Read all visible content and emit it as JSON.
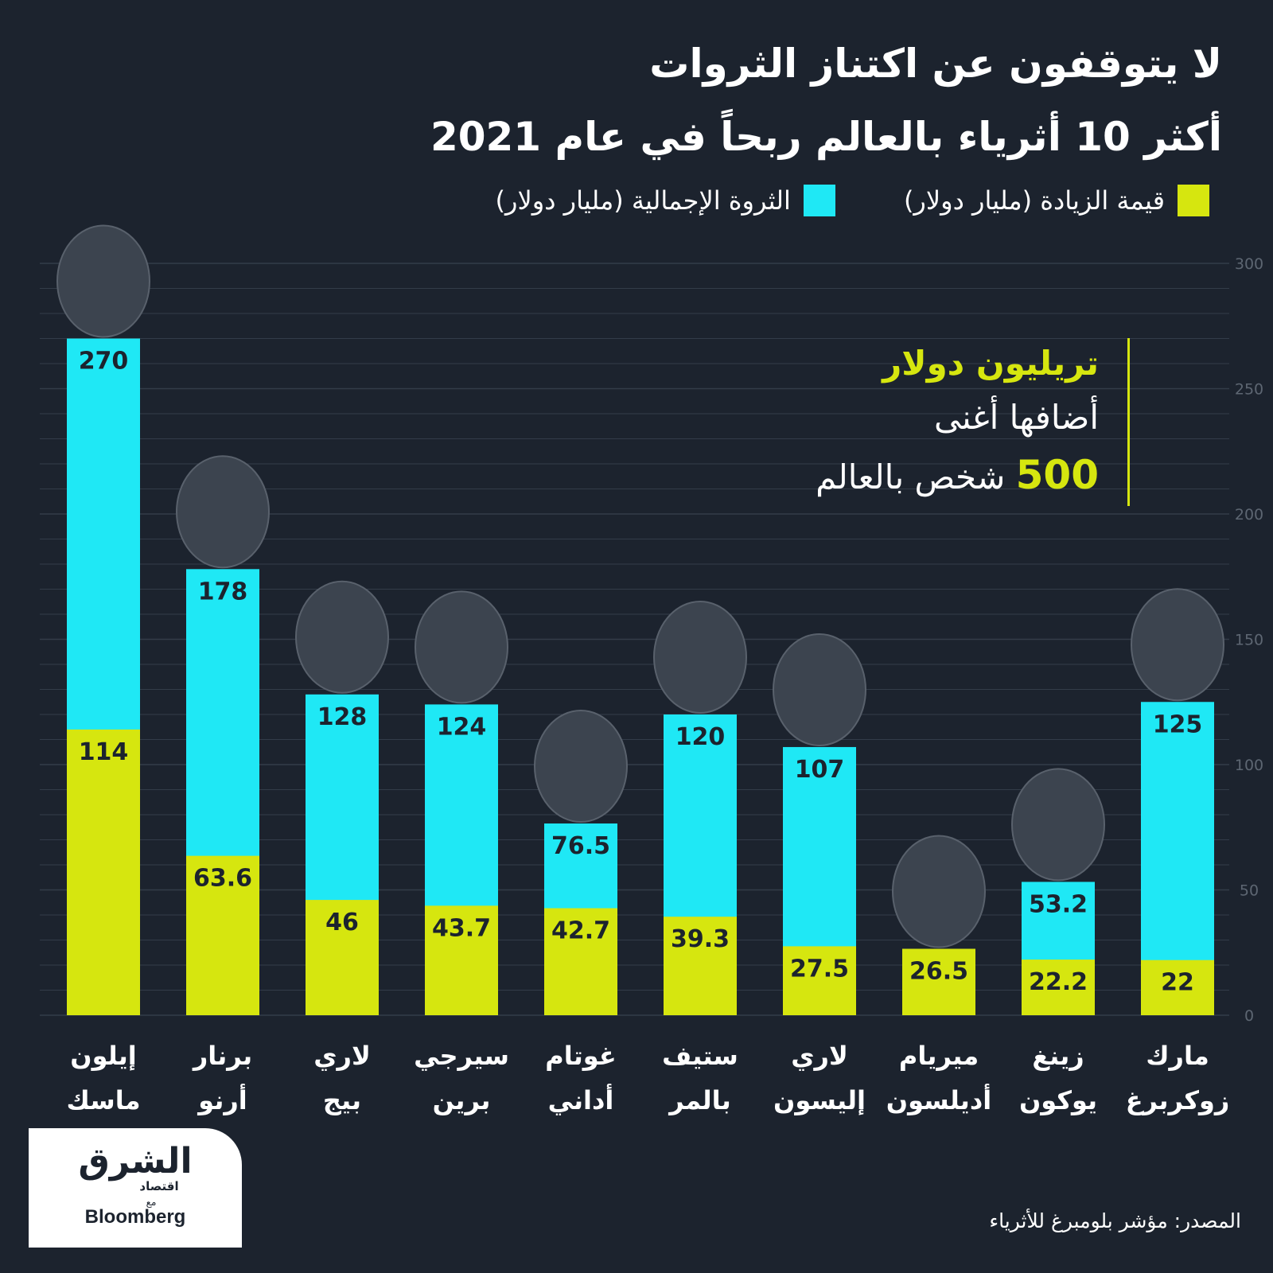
{
  "title_line1": "لا يتوقفون عن اكتناز الثروات",
  "title_line2": "أكثر 10 أثرياء بالعالم ربحاً في عام 2021",
  "legend": {
    "increase": "قيمة الزيادة (مليار دولار)",
    "total": "الثروة الإجمالية (مليار دولار)"
  },
  "callout": {
    "line1": "تريليون دولار",
    "line2": "أضافها أغنى",
    "number": "500",
    "line3_rest": "شخص بالعالم"
  },
  "colors": {
    "background": "#1c232e",
    "total": "#1fe8f5",
    "increase": "#d6e60f",
    "gridline": "#333c49",
    "axis_text": "#5d6672"
  },
  "chart_data": {
    "type": "bar",
    "stacking": "overlay",
    "categories": [
      "إيلون\nماسك",
      "برنار\nأرنو",
      "لاري\nبيج",
      "سيرجي\nبرين",
      "غوتام\nأداني",
      "ستيف\nبالمر",
      "لاري\nإليسون",
      "ميريام\nأديلسون",
      "زينغ\nيوكون",
      "مارك\nزوكربرغ"
    ],
    "series": [
      {
        "name": "الثروة الإجمالية (مليار دولار)",
        "values": [
          270,
          178,
          128,
          124,
          76.5,
          120,
          107,
          26.5,
          53.2,
          125
        ],
        "labels": [
          "270",
          "178",
          "128",
          "124",
          "76.5",
          "120",
          "107",
          "",
          "53.2",
          "125"
        ]
      },
      {
        "name": "قيمة الزيادة (مليار دولار)",
        "values": [
          114,
          63.6,
          46,
          43.7,
          42.7,
          39.3,
          27.5,
          26.5,
          22.2,
          22
        ],
        "labels": [
          "114",
          "63.6",
          "46",
          "43.7",
          "42.7",
          "39.3",
          "27.5",
          "26.5",
          "22.2",
          "22"
        ]
      }
    ],
    "yticks": [
      0,
      50,
      100,
      150,
      200,
      250,
      300
    ],
    "ylim": [
      0,
      300
    ],
    "y_axis_side": "right",
    "grid": true
  },
  "logo": {
    "ar": "الشرق",
    "sub": "اقتصاد",
    "with": "مع",
    "brand": "Bloomberg"
  },
  "source": "المصدر: مؤشر بلومبرغ للأثرياء"
}
